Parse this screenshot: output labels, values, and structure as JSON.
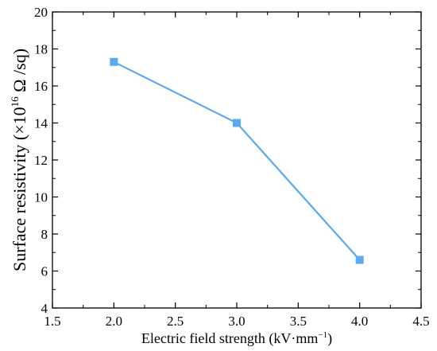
{
  "chart_data": {
    "type": "line",
    "title": "",
    "xlabel_parts": {
      "main": "Electric field strength (kV·mm",
      "sup": "−1",
      "end": ")"
    },
    "ylabel_parts": {
      "main": "Surface resistivity (×10",
      "sup": "16",
      "end": " Ω /sq)"
    },
    "xlim": [
      1.5,
      4.5
    ],
    "ylim": [
      4,
      20
    ],
    "xticks": [
      "1.5",
      "2.0",
      "2.5",
      "3.0",
      "3.5",
      "4.0",
      "4.5"
    ],
    "yticks": [
      "4",
      "6",
      "8",
      "10",
      "12",
      "14",
      "16",
      "18",
      "20"
    ],
    "grid": false,
    "legend": "none",
    "series": [
      {
        "color": "#5aaaf0",
        "marker": "square",
        "x": [
          2.0,
          3.0,
          4.0
        ],
        "y": [
          17.3,
          14.0,
          6.6
        ]
      }
    ]
  }
}
